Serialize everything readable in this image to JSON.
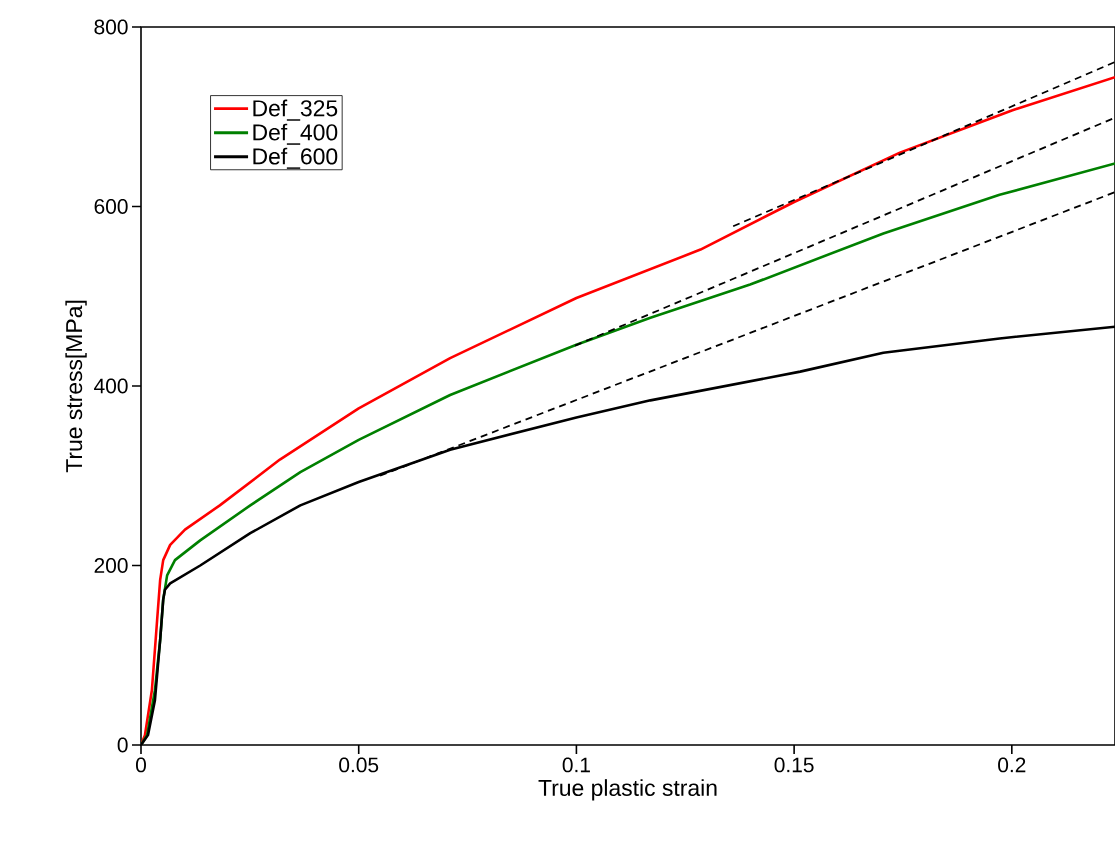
{
  "chart_data": {
    "type": "line",
    "xlabel": "True plastic strain",
    "ylabel": "True stress[MPa]",
    "xlim": [
      0,
      0.2237
    ],
    "ylim": [
      0,
      800
    ],
    "xticks": [
      0,
      0.05,
      0.1,
      0.15,
      0.2
    ],
    "yticks": [
      0,
      200,
      400,
      600,
      800
    ],
    "grid": false,
    "legend": "top left",
    "series": [
      {
        "name": "Def_325",
        "color": "#ff0000",
        "x": [
          0,
          0.0009,
          0.0025,
          0.0037,
          0.0044,
          0.0051,
          0.0067,
          0.0101,
          0.0181,
          0.0319,
          0.05,
          0.071,
          0.1,
          0.1285,
          0.15,
          0.1743,
          0.2,
          0.2237
        ],
        "values": [
          0,
          11,
          61,
          139,
          184,
          206,
          223,
          240,
          267,
          318,
          375,
          431,
          498,
          552,
          605,
          660,
          707,
          744
        ]
      },
      {
        "name": "Def_400",
        "color": "#008000",
        "x": [
          0,
          0.0014,
          0.0032,
          0.0044,
          0.0051,
          0.006,
          0.0078,
          0.0136,
          0.0251,
          0.0366,
          0.05,
          0.071,
          0.1,
          0.117,
          0.1399,
          0.1705,
          0.1972,
          0.2237
        ],
        "values": [
          0,
          11,
          61,
          117,
          162,
          189,
          206,
          228,
          267,
          304,
          340,
          390,
          446,
          476,
          513,
          570,
          613,
          648
        ]
      },
      {
        "name": "Def_600",
        "color": "#000000",
        "x": [
          0,
          0.0016,
          0.0032,
          0.0044,
          0.0051,
          0.0055,
          0.0067,
          0.0136,
          0.0251,
          0.0366,
          0.05,
          0.071,
          0.1,
          0.117,
          0.1514,
          0.1705,
          0.1972,
          0.2237
        ],
        "values": [
          0,
          11,
          50,
          117,
          162,
          173,
          180,
          200,
          236,
          267,
          293,
          329,
          365,
          384,
          416,
          437,
          453,
          466
        ]
      },
      {
        "color": "#000000",
        "line_style": "dashed",
        "x": [
          0.136,
          0.2237
        ],
        "values": [
          578,
          761
        ]
      },
      {
        "color": "#000000",
        "line_style": "dashed",
        "x": [
          0.0997,
          0.2237
        ],
        "values": [
          445,
          699
        ]
      },
      {
        "color": "#000000",
        "line_style": "dashed",
        "x": [
          0.0549,
          0.2237
        ],
        "values": [
          300,
          616
        ]
      }
    ]
  }
}
